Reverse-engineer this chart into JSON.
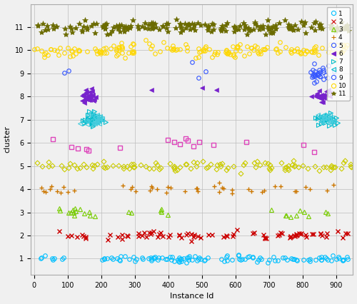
{
  "xlabel": "Instance Id",
  "ylabel": "cluster",
  "xlim": [
    -10,
    950
  ],
  "ylim": [
    0.3,
    12.0
  ],
  "yticks": [
    1,
    2,
    3,
    4,
    5,
    6,
    7,
    8,
    9,
    10,
    11
  ],
  "xticks": [
    0,
    100,
    200,
    300,
    400,
    500,
    600,
    700,
    800,
    900
  ],
  "legend_items": [
    {
      "label": "1",
      "color": "#00BFFF",
      "marker": "o",
      "mfc": "none"
    },
    {
      "label": "2",
      "color": "#CC0000",
      "marker": "x",
      "mfc": "#CC0000"
    },
    {
      "label": "3",
      "color": "#77CC00",
      "marker": "^",
      "mfc": "none"
    },
    {
      "label": "4",
      "color": "#CC7700",
      "marker": "+",
      "mfc": "#CC7700"
    },
    {
      "label": "5",
      "color": "#3355FF",
      "marker": "o",
      "mfc": "none"
    },
    {
      "label": "6",
      "color": "#7722CC",
      "marker": "<",
      "mfc": "#7722CC"
    },
    {
      "label": "7",
      "color": "#00BBCC",
      "marker": ">",
      "mfc": "none"
    },
    {
      "label": "8",
      "color": "#00BBCC",
      "marker": "<",
      "mfc": "none"
    },
    {
      "label": "9",
      "color": "#3355FF",
      "marker": "o",
      "mfc": "none"
    },
    {
      "label": "10",
      "color": "#FFD700",
      "marker": "o",
      "mfc": "none"
    },
    {
      "label": "11",
      "color": "#6B6B00",
      "marker": "*",
      "mfc": "#6B6B00"
    }
  ],
  "bg_color": "#F0F0F0",
  "grid_color": "#BBBBBB"
}
